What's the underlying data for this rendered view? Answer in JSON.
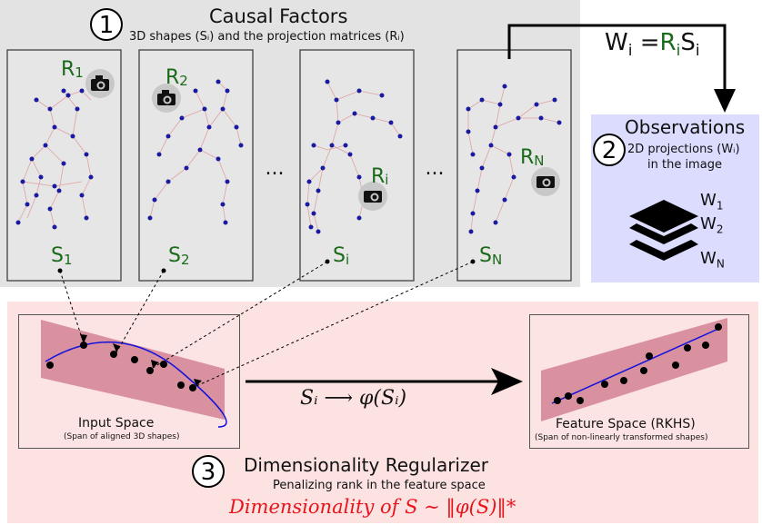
{
  "causal": {
    "number": "1",
    "title": "Causal Factors",
    "subtitle": "3D shapes (Sᵢ) and the projection matrices (Rᵢ)",
    "panels": [
      {
        "r": "R",
        "rsub": "1",
        "s": "S",
        "ssub": "1"
      },
      {
        "r": "R",
        "rsub": "2",
        "s": "S",
        "ssub": "2"
      },
      {
        "r": "R",
        "rsub": "i",
        "s": "S",
        "ssub": "i"
      },
      {
        "r": "R",
        "rsub": "N",
        "s": "S",
        "ssub": "N"
      }
    ],
    "ellipsis": "..."
  },
  "formula": {
    "lhs": "W",
    "lhs_sub": "i",
    "eq": "=",
    "r": "R",
    "r_sub": "i",
    "s": "S",
    "s_sub": "i"
  },
  "observations": {
    "number": "2",
    "title": "Observations",
    "line1": "2D projections (Wᵢ)",
    "line2": "in the image",
    "labels": [
      {
        "w": "W",
        "sub": "1"
      },
      {
        "w": "W",
        "sub": "2"
      },
      {
        "w": "W",
        "sub": "N"
      }
    ]
  },
  "regularizer": {
    "number": "3",
    "title": "Dimensionality Regularizer",
    "subtitle": "Penalizing rank in the feature space",
    "equation": "Dimensionality of S  ∼ ‖φ(S)‖*",
    "input_space": {
      "title": "Input Space",
      "caption": "(Span of aligned 3D shapes)"
    },
    "feature_space": {
      "title": "Feature Space (RKHS)",
      "caption": "(Span of non-linearly transformed shapes)"
    },
    "mapping": "Sᵢ ⟶ φ(Sᵢ)"
  },
  "colors": {
    "top_bg": "#e3e3e3",
    "obs_bg": "#dcdcff",
    "bottom_bg": "#fde2e2",
    "plane": "#d9909f",
    "green_label": "#1a6a1a",
    "red_text": "#e8141c",
    "curve": "#1111dd"
  }
}
